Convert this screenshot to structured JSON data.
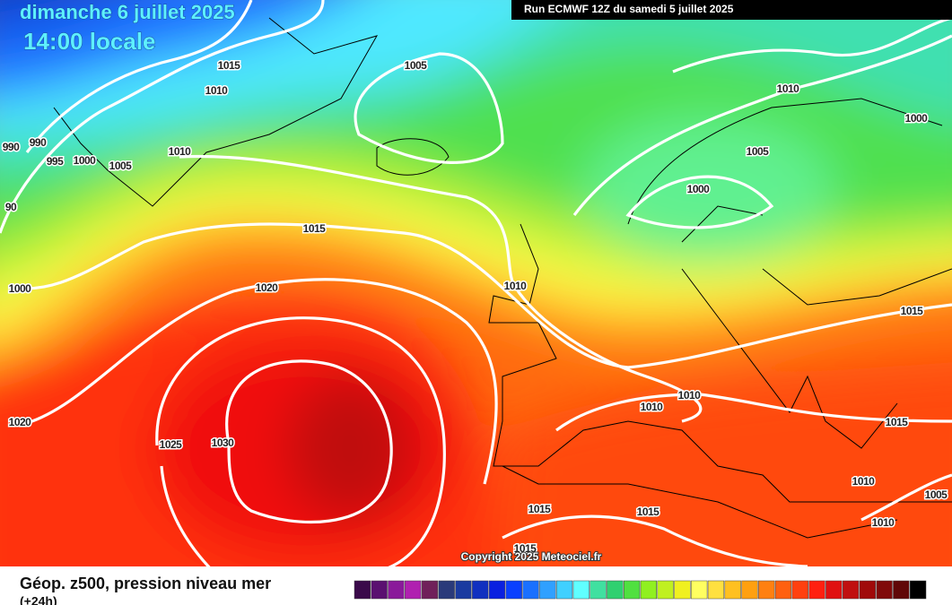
{
  "header": {
    "date": "dimanche 6 juillet 2025",
    "time": "14:00 locale",
    "run": "Run ECMWF 12Z du samedi 5 juillet 2025"
  },
  "map": {
    "isobar_labels": [
      "1015",
      "1010",
      "1005",
      "990",
      "990",
      "995",
      "1000",
      "1005",
      "1010",
      "1015",
      "1020",
      "1000",
      "1010",
      "1020",
      "1025",
      "1030",
      "1010",
      "1000",
      "1005",
      "1000",
      "1015",
      "1010",
      "1010",
      "1015",
      "1010",
      "1005",
      "1015",
      "1015",
      "1010",
      "1015",
      "90"
    ],
    "copyright": "Copyright 2025 Meteociel.fr"
  },
  "footer": {
    "title": "Géop. z500, pression niveau mer",
    "subtitle": "(+24h)",
    "colorbar": [
      "#3a0a4a",
      "#5a1070",
      "#8a1a9a",
      "#b020b0",
      "#70205a",
      "#2a3a7a",
      "#1a3aa0",
      "#1030c0",
      "#0a20e0",
      "#0a40ff",
      "#1a70ff",
      "#30a0ff",
      "#40d0ff",
      "#60ffff",
      "#40e0a0",
      "#30d070",
      "#50e040",
      "#90f020",
      "#c0f020",
      "#f0f020",
      "#ffff60",
      "#ffe040",
      "#ffc020",
      "#ffa010",
      "#ff8010",
      "#ff6010",
      "#ff4010",
      "#ff2010",
      "#e01010",
      "#c01010",
      "#a00a0a",
      "#800a0a",
      "#600808",
      "#000000"
    ]
  }
}
